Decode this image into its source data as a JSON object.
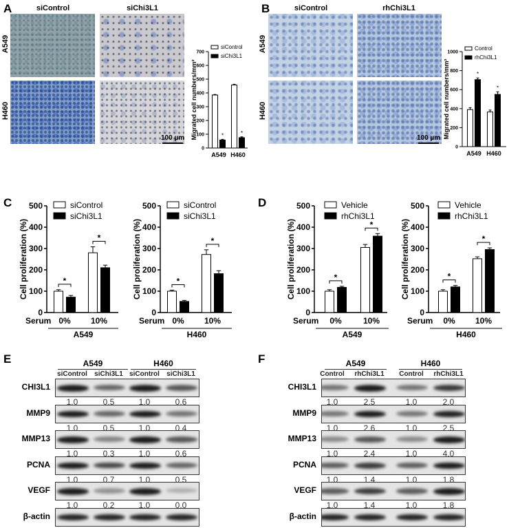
{
  "panel_labels": {
    "A": "A",
    "B": "B",
    "C": "C",
    "D": "D",
    "E": "E",
    "F": "F"
  },
  "micrographs": {
    "A": {
      "cols": [
        "siControl",
        "siChi3L1"
      ],
      "rows": [
        "A549",
        "H460"
      ],
      "scale_bar": "100 µm"
    },
    "B": {
      "cols": [
        "siControl",
        "rhChi3L1"
      ],
      "rows": [
        "A549",
        "H460"
      ],
      "scale_bar": "100 µm"
    }
  },
  "chart_data": [
    {
      "id": "A",
      "type": "bar",
      "title": "",
      "xlabel": "",
      "ylabel": "Migrated cell numbers/mm²",
      "categories": [
        "A549",
        "H460"
      ],
      "ylim": [
        0,
        700
      ],
      "yticks": [
        "0",
        "100",
        "200",
        "300",
        "400",
        "500",
        "600",
        "700"
      ],
      "series": [
        {
          "name": "siControl",
          "values": [
            385,
            458
          ],
          "errors": [
            4,
            5
          ],
          "color": "#ffffff"
        },
        {
          "name": "siChi3L1",
          "values": [
            58,
            75
          ],
          "errors": [
            5,
            6
          ],
          "color": "#000000"
        }
      ],
      "significance": [
        "*",
        "*"
      ],
      "legend": "top-right",
      "grid": false
    },
    {
      "id": "B",
      "type": "bar",
      "title": "",
      "xlabel": "",
      "ylabel": "Migrated cell numbers/mm²",
      "categories": [
        "A549",
        "H460"
      ],
      "ylim": [
        0,
        1000
      ],
      "yticks": [
        "0",
        "200",
        "400",
        "600",
        "800",
        "1000"
      ],
      "series": [
        {
          "name": "Control",
          "values": [
            390,
            365
          ],
          "errors": [
            20,
            20
          ],
          "color": "#ffffff"
        },
        {
          "name": "rhChi3L1",
          "values": [
            705,
            550
          ],
          "errors": [
            18,
            27
          ],
          "color": "#000000"
        }
      ],
      "significance": [
        "*",
        "*"
      ],
      "legend": "top-right",
      "grid": false
    },
    {
      "id": "C1",
      "type": "bar",
      "title": "",
      "xlabel": "Serum",
      "group_label": "A549",
      "ylabel": "Cell proliferation  (%)",
      "categories": [
        "0%",
        "10%"
      ],
      "ylim": [
        0,
        500
      ],
      "yticks": [
        "0",
        "100",
        "200",
        "300",
        "400",
        "500"
      ],
      "series": [
        {
          "name": "siControl",
          "values": [
            100,
            280
          ],
          "errors": [
            7,
            28
          ],
          "color": "#ffffff"
        },
        {
          "name": "siChi3L1",
          "values": [
            72,
            210
          ],
          "errors": [
            8,
            12
          ],
          "color": "#000000"
        }
      ],
      "significance": [
        "*",
        "*"
      ],
      "legend": "top-right",
      "grid": false
    },
    {
      "id": "C2",
      "type": "bar",
      "title": "",
      "xlabel": "Serum",
      "group_label": "H460",
      "ylabel": "Cell proliferation  (%)",
      "categories": [
        "0%",
        "10%"
      ],
      "ylim": [
        0,
        500
      ],
      "yticks": [
        "0",
        "100",
        "200",
        "300",
        "400",
        "500"
      ],
      "series": [
        {
          "name": "siControl",
          "values": [
            100,
            272
          ],
          "errors": [
            5,
            22
          ],
          "color": "#ffffff"
        },
        {
          "name": "siChi3L1",
          "values": [
            52,
            182
          ],
          "errors": [
            5,
            14
          ],
          "color": "#000000"
        }
      ],
      "significance": [
        "*",
        "*"
      ],
      "legend": "top-right",
      "grid": false
    },
    {
      "id": "D1",
      "type": "bar",
      "title": "",
      "xlabel": "Serum",
      "group_label": "A549",
      "ylabel": "Cell proliferation  (%)",
      "categories": [
        "0%",
        "10%"
      ],
      "ylim": [
        0,
        500
      ],
      "yticks": [
        "0",
        "100",
        "200",
        "300",
        "400",
        "500"
      ],
      "series": [
        {
          "name": "Vehicle",
          "values": [
            100,
            305
          ],
          "errors": [
            7,
            14
          ],
          "color": "#ffffff"
        },
        {
          "name": "rhChi3L1",
          "values": [
            118,
            358
          ],
          "errors": [
            5,
            12
          ],
          "color": "#000000"
        }
      ],
      "significance": [
        "*",
        "*"
      ],
      "legend": "top-right",
      "grid": false
    },
    {
      "id": "D2",
      "type": "bar",
      "title": "",
      "xlabel": "Serum",
      "group_label": "H460",
      "ylabel": "Cell proliferation  (%)",
      "categories": [
        "0%",
        "10%"
      ],
      "ylim": [
        0,
        500
      ],
      "yticks": [
        "0",
        "100",
        "200",
        "300",
        "400",
        "500"
      ],
      "series": [
        {
          "name": "Vehicle",
          "values": [
            100,
            252
          ],
          "errors": [
            7,
            9
          ],
          "color": "#ffffff"
        },
        {
          "name": "rhChi3L1",
          "values": [
            120,
            295
          ],
          "errors": [
            7,
            8
          ],
          "color": "#000000"
        }
      ],
      "significance": [
        "*",
        "*"
      ],
      "legend": "top-right",
      "grid": false
    }
  ],
  "blots": {
    "E": {
      "groups": [
        "A549",
        "H460"
      ],
      "lanes": [
        "siControl",
        "siChi3L1",
        "siControl",
        "siChi3L1"
      ],
      "rows": [
        {
          "protein": "CHI3L1",
          "values": [
            "1.0",
            "0.5",
            "1.0",
            "0.6"
          ]
        },
        {
          "protein": "MMP9",
          "values": [
            "1.0",
            "0.5",
            "1.0",
            "0.4"
          ]
        },
        {
          "protein": "MMP13",
          "values": [
            "1.0",
            "0.3",
            "1.0",
            "0.6"
          ]
        },
        {
          "protein": "PCNA",
          "values": [
            "1.0",
            "0.7",
            "1.0",
            "0.5"
          ]
        },
        {
          "protein": "VEGF",
          "values": [
            "1.0",
            "0.2",
            "1.0",
            "0.0"
          ]
        },
        {
          "protein": "β-actin",
          "values": []
        }
      ]
    },
    "F": {
      "groups": [
        "A549",
        "H460"
      ],
      "lanes": [
        "Control",
        "rhChi3L1",
        "Control",
        "rhChi3L1"
      ],
      "rows": [
        {
          "protein": "CHI3L1",
          "values": [
            "1.0",
            "2.5",
            "1.0",
            "2.0"
          ]
        },
        {
          "protein": "MMP9",
          "values": [
            "1.0",
            "2.6",
            "1.0",
            "2.5"
          ]
        },
        {
          "protein": "MMP13",
          "values": [
            "1.0",
            "2.4",
            "1.0",
            "4.0"
          ]
        },
        {
          "protein": "PCNA",
          "values": [
            "1.0",
            "1.4",
            "1.0",
            "1.8"
          ]
        },
        {
          "protein": "VEGF",
          "values": [
            "1.0",
            "1.4",
            "1.0",
            "1.8"
          ]
        },
        {
          "protein": "β-actin",
          "values": []
        }
      ]
    }
  }
}
